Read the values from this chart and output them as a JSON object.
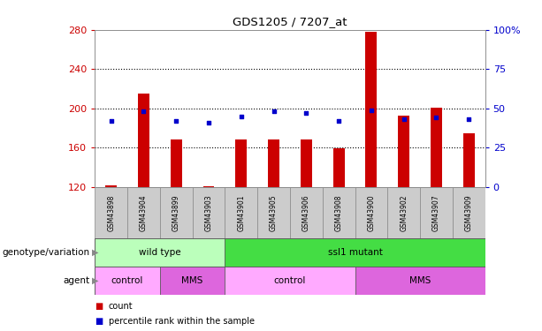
{
  "title": "GDS1205 / 7207_at",
  "samples": [
    "GSM43898",
    "GSM43904",
    "GSM43899",
    "GSM43903",
    "GSM43901",
    "GSM43905",
    "GSM43906",
    "GSM43908",
    "GSM43900",
    "GSM43902",
    "GSM43907",
    "GSM43909"
  ],
  "count_values": [
    122,
    215,
    168,
    121,
    168,
    168,
    168,
    159,
    278,
    193,
    201,
    175
  ],
  "count_base": 120,
  "percentile_values": [
    42,
    48,
    42,
    41,
    45,
    48,
    47,
    42,
    49,
    43,
    44,
    43
  ],
  "ylim_left": [
    120,
    280
  ],
  "ylim_right": [
    0,
    100
  ],
  "yticks_left": [
    120,
    160,
    200,
    240,
    280
  ],
  "yticks_right": [
    0,
    25,
    50,
    75,
    100
  ],
  "ytick_labels_right": [
    "0",
    "25",
    "50",
    "75",
    "100%"
  ],
  "bar_color": "#cc0000",
  "percentile_color": "#0000cc",
  "bar_width": 0.35,
  "genotype_groups": [
    {
      "label": "wild type",
      "start": 0,
      "end": 4,
      "color": "#bbffbb"
    },
    {
      "label": "ssl1 mutant",
      "start": 4,
      "end": 12,
      "color": "#44dd44"
    }
  ],
  "agent_groups": [
    {
      "label": "control",
      "start": 0,
      "end": 2,
      "color": "#ffaaff"
    },
    {
      "label": "MMS",
      "start": 2,
      "end": 4,
      "color": "#dd66dd"
    },
    {
      "label": "control",
      "start": 4,
      "end": 8,
      "color": "#ffaaff"
    },
    {
      "label": "MMS",
      "start": 8,
      "end": 12,
      "color": "#dd66dd"
    }
  ],
  "legend_count_label": "count",
  "legend_pct_label": "percentile rank within the sample",
  "genotype_label": "genotype/variation",
  "agent_label": "agent",
  "left_axis_color": "#cc0000",
  "right_axis_color": "#0000cc",
  "title_color": "#000000",
  "sample_box_color": "#cccccc",
  "sample_box_edge": "#888888"
}
